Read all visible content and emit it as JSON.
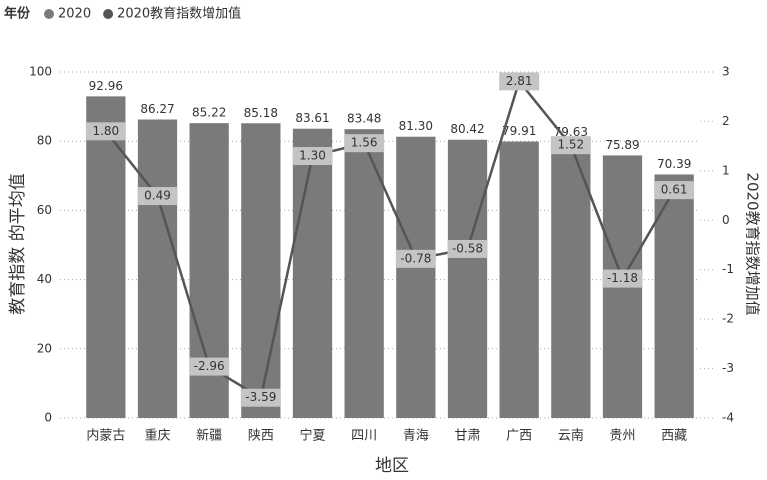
{
  "chart_data": {
    "type": "bar",
    "legend_title": "年份",
    "x_label": "地区",
    "y_label": "教育指数 的平均值",
    "y2_label": "2020教育指数增加值",
    "categories": [
      "内蒙古",
      "重庆",
      "新疆",
      "陕西",
      "宁夏",
      "四川",
      "青海",
      "甘肃",
      "广西",
      "云南",
      "贵州",
      "西藏"
    ],
    "series": [
      {
        "name": "2020",
        "type": "bar",
        "color": "#7a7a7a",
        "values": [
          92.96,
          86.27,
          85.22,
          85.18,
          83.61,
          83.48,
          81.3,
          80.42,
          79.91,
          79.63,
          75.89,
          70.39
        ],
        "value_labels": [
          "92.96",
          "86.27",
          "85.22",
          "85.18",
          "83.61",
          "83.48",
          "81.30",
          "80.42",
          "79.91",
          "79.63",
          "75.89",
          "70.39"
        ]
      },
      {
        "name": "2020教育指数增加值",
        "type": "line",
        "axis": "y2",
        "color": "#555555",
        "values": [
          1.8,
          0.49,
          -2.96,
          -3.59,
          1.3,
          1.56,
          -0.78,
          -0.58,
          2.81,
          1.52,
          -1.18,
          0.61
        ],
        "value_labels": [
          "1.80",
          "0.49",
          "-2.96",
          "-3.59",
          "1.30",
          "1.56",
          "-0.78",
          "-0.58",
          "2.81",
          "1.52",
          "-1.18",
          "0.61"
        ]
      }
    ],
    "ylim": [
      0,
      100
    ],
    "yticks": [
      0,
      20,
      40,
      60,
      80,
      100
    ],
    "y2lim": [
      -4,
      3
    ],
    "y2ticks": [
      -4,
      -3,
      -2,
      -1,
      0,
      1,
      2,
      3
    ],
    "grid": true
  }
}
